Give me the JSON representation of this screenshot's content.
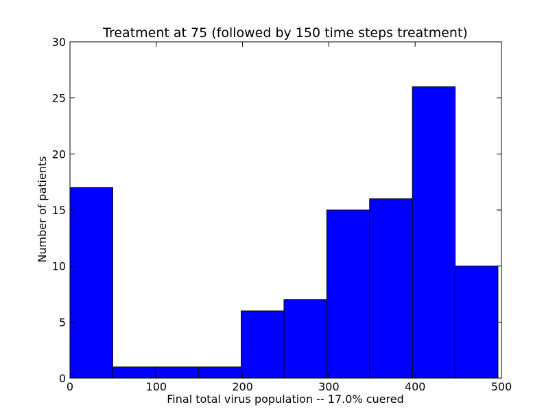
{
  "chart_data": {
    "type": "bar",
    "title": "Treatment at 75 (followed by 150 time steps treatment)",
    "xlabel": "Final total virus population -- 17.0% cuered",
    "ylabel": "Number of patients",
    "xlim": [
      0,
      500
    ],
    "ylim": [
      0,
      30
    ],
    "x_ticks": [
      0,
      100,
      200,
      300,
      400,
      500
    ],
    "y_ticks": [
      0,
      5,
      10,
      15,
      20,
      25,
      30
    ],
    "bins": [
      {
        "start": 0,
        "end": 49.6,
        "count": 17
      },
      {
        "start": 49.6,
        "end": 99.2,
        "count": 1
      },
      {
        "start": 99.2,
        "end": 148.8,
        "count": 1
      },
      {
        "start": 148.8,
        "end": 198.4,
        "count": 1
      },
      {
        "start": 198.4,
        "end": 248.0,
        "count": 6
      },
      {
        "start": 248.0,
        "end": 297.6,
        "count": 7
      },
      {
        "start": 297.6,
        "end": 347.2,
        "count": 15
      },
      {
        "start": 347.2,
        "end": 396.8,
        "count": 16
      },
      {
        "start": 396.8,
        "end": 446.4,
        "count": 26
      },
      {
        "start": 446.4,
        "end": 496.0,
        "count": 10
      }
    ],
    "bar_color": "#0000ff",
    "edge_color": "#000000",
    "grid": false,
    "legend": "none"
  }
}
